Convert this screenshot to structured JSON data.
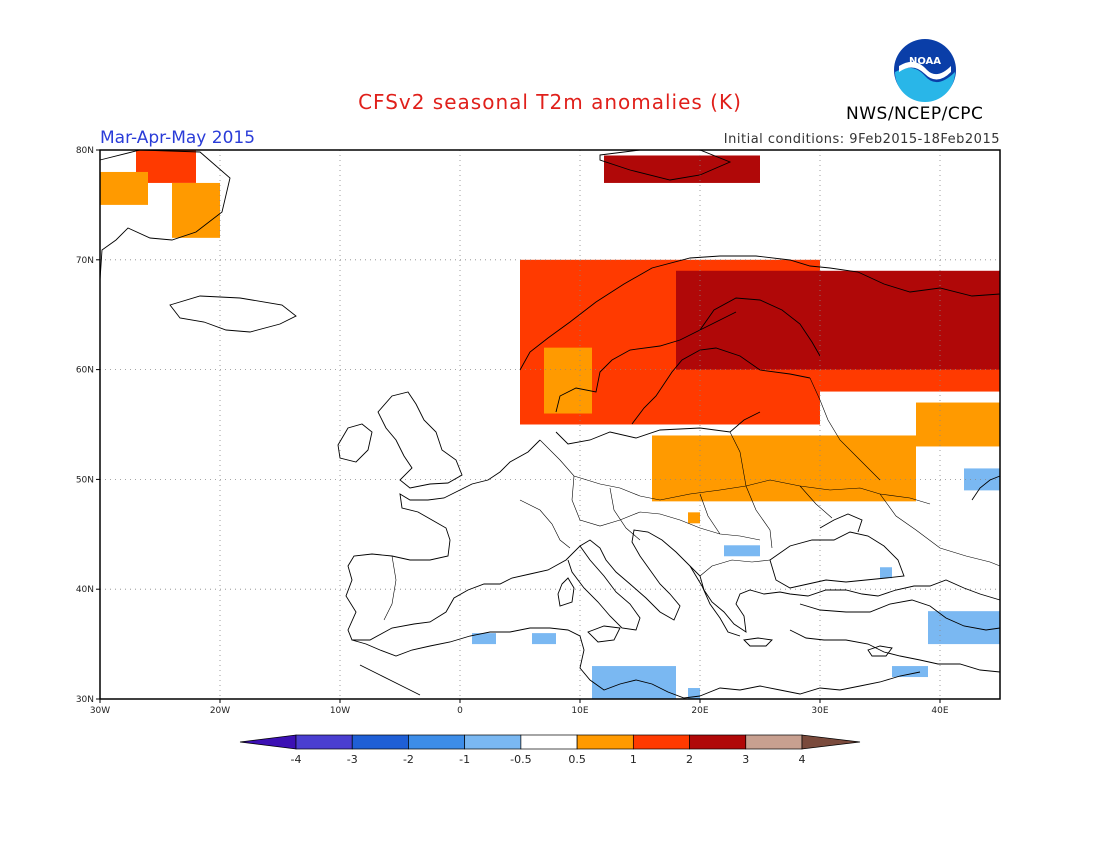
{
  "header": {
    "title": "CFSv2 seasonal T2m anomalies (K)",
    "season": "Mar-Apr-May 2015",
    "initial_conditions": "Initial conditions: 9Feb2015-18Feb2015",
    "organization": "NWS/NCEP/CPC",
    "logo_text": "NOAA",
    "logo_icon": "noaa-logo-icon"
  },
  "map": {
    "lon_range": [
      -30,
      45
    ],
    "lat_range": [
      30,
      80
    ],
    "lat_ticks": [
      {
        "value": 80,
        "label": "80N"
      },
      {
        "value": 70,
        "label": "70N"
      },
      {
        "value": 60,
        "label": "60N"
      },
      {
        "value": 50,
        "label": "50N"
      },
      {
        "value": 40,
        "label": "40N"
      },
      {
        "value": 30,
        "label": "30N"
      }
    ],
    "lon_ticks": [
      {
        "value": -30,
        "label": "30W"
      },
      {
        "value": -20,
        "label": "20W"
      },
      {
        "value": -10,
        "label": "10W"
      },
      {
        "value": 0,
        "label": "0"
      },
      {
        "value": 10,
        "label": "10E"
      },
      {
        "value": 20,
        "label": "20E"
      },
      {
        "value": 30,
        "label": "30E"
      },
      {
        "value": 40,
        "label": "40E"
      }
    ],
    "grid": true
  },
  "anomaly_regions": [
    {
      "level": "1to2",
      "lon": [
        -27,
        -22
      ],
      "lat": [
        77,
        80
      ]
    },
    {
      "level": "0.5to1",
      "lon": [
        -30,
        -26
      ],
      "lat": [
        75,
        78
      ]
    },
    {
      "level": "0.5to1",
      "lon": [
        -24,
        -20
      ],
      "lat": [
        72,
        77
      ]
    },
    {
      "level": "2to3",
      "lon": [
        12,
        25
      ],
      "lat": [
        77,
        79.5
      ]
    },
    {
      "level": "1to2",
      "lon": [
        5,
        30
      ],
      "lat": [
        55,
        70
      ]
    },
    {
      "level": "1to2",
      "lon": [
        30,
        45
      ],
      "lat": [
        58,
        68
      ]
    },
    {
      "level": "2to3",
      "lon": [
        18,
        45
      ],
      "lat": [
        60,
        69
      ]
    },
    {
      "level": "0.5to1",
      "lon": [
        7,
        11
      ],
      "lat": [
        56,
        62
      ]
    },
    {
      "level": "0.5to1",
      "lon": [
        16,
        38
      ],
      "lat": [
        48,
        54
      ]
    },
    {
      "level": "0.5to1",
      "lon": [
        38,
        45
      ],
      "lat": [
        53,
        57
      ]
    },
    {
      "level": "0.5to1",
      "lon": [
        19,
        20
      ],
      "lat": [
        46,
        47
      ]
    },
    {
      "level": "-1to-0.5",
      "lon": [
        42,
        45
      ],
      "lat": [
        49,
        51
      ]
    },
    {
      "level": "-1to-0.5",
      "lon": [
        22,
        25
      ],
      "lat": [
        43,
        44
      ]
    },
    {
      "level": "-1to-0.5",
      "lon": [
        35,
        36
      ],
      "lat": [
        41,
        42
      ]
    },
    {
      "level": "-1to-0.5",
      "lon": [
        1,
        3
      ],
      "lat": [
        35,
        36
      ]
    },
    {
      "level": "-1to-0.5",
      "lon": [
        6,
        8
      ],
      "lat": [
        35,
        36
      ]
    },
    {
      "level": "-1to-0.5",
      "lon": [
        11,
        18
      ],
      "lat": [
        30,
        33
      ]
    },
    {
      "level": "-1to-0.5",
      "lon": [
        19,
        20
      ],
      "lat": [
        30,
        31
      ]
    },
    {
      "level": "-1to-0.5",
      "lon": [
        39,
        45
      ],
      "lat": [
        35,
        38
      ]
    },
    {
      "level": "-1to-0.5",
      "lon": [
        36,
        39
      ],
      "lat": [
        32,
        33
      ]
    }
  ],
  "colorbar": {
    "labels": [
      "-4",
      "-3",
      "-2",
      "-1",
      "-0.5",
      "0.5",
      "1",
      "2",
      "3",
      "4"
    ],
    "colors": [
      "#3c10b4",
      "#4a3ed0",
      "#1f5fd6",
      "#3d8de8",
      "#7ab8f2",
      "#ffffff",
      "#ff9a00",
      "#ff3a00",
      "#b00808",
      "#c8a090",
      "#7a4a3c"
    ]
  },
  "colors": {
    "0.5to1": "#ff9a00",
    "1to2": "#ff3a00",
    "2to3": "#b00808",
    "-1to-0.5": "#7ab8f2"
  }
}
